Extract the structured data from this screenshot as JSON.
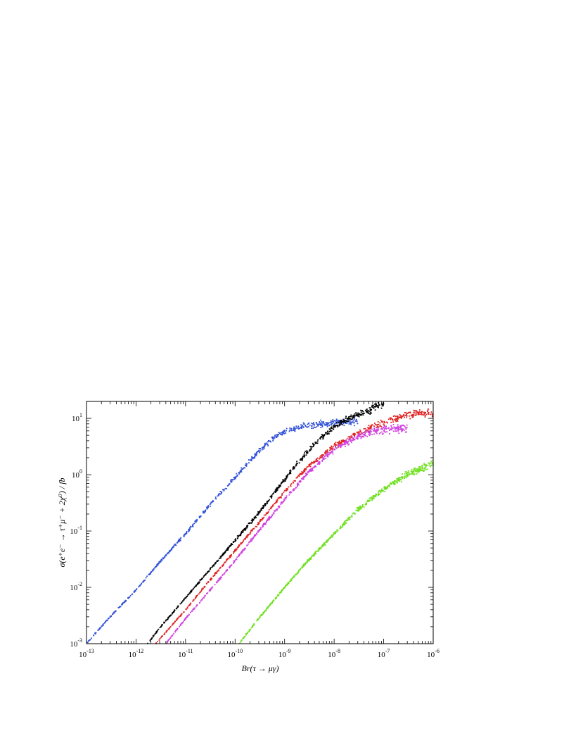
{
  "chart_data": {
    "type": "scatter",
    "xlabel": "Br(τ → μγ)",
    "ylabel": "σ(e⁺e⁻ → τ⁺μ⁻ + 2χ⁰) / fb",
    "x_scale": "log",
    "y_scale": "log",
    "xlim": [
      1e-13,
      1e-06
    ],
    "ylim": [
      0.001,
      20
    ],
    "grid": false,
    "legend": "none",
    "x_ticks": [
      {
        "value": 1e-13,
        "base": "10",
        "exp": "-13"
      },
      {
        "value": 1e-12,
        "base": "10",
        "exp": "-12"
      },
      {
        "value": 1e-11,
        "base": "10",
        "exp": "-11"
      },
      {
        "value": 1e-10,
        "base": "10",
        "exp": "-10"
      },
      {
        "value": 1e-09,
        "base": "10",
        "exp": "-9"
      },
      {
        "value": 1e-08,
        "base": "10",
        "exp": "-8"
      },
      {
        "value": 1e-07,
        "base": "10",
        "exp": "-7"
      },
      {
        "value": 1e-06,
        "base": "10",
        "exp": "-6"
      }
    ],
    "y_ticks": [
      {
        "value": 0.001,
        "base": "10",
        "exp": "-3"
      },
      {
        "value": 0.01,
        "base": "10",
        "exp": "-2"
      },
      {
        "value": 0.1,
        "base": "10",
        "exp": "-1"
      },
      {
        "value": 1,
        "base": "10",
        "exp": "0"
      },
      {
        "value": 10,
        "base": "10",
        "exp": "1"
      }
    ],
    "series": [
      {
        "color": "#3050d8",
        "x": [
          1e-13,
          3e-13,
          1e-12,
          3e-12,
          1e-11,
          3e-11,
          1e-10,
          2e-10,
          4e-10,
          7e-10,
          1.5e-09,
          3e-09,
          6e-09,
          1e-08,
          2e-08,
          3e-08
        ],
        "y": [
          0.001,
          0.003,
          0.009,
          0.028,
          0.09,
          0.28,
          0.9,
          1.8,
          3.3,
          5.0,
          6.5,
          7.5,
          8.0,
          8.5,
          8.5,
          8.8
        ]
      },
      {
        "color": "#000000",
        "x": [
          1.7e-12,
          3e-12,
          1e-11,
          3e-11,
          1e-10,
          3e-10,
          7e-10,
          1.5e-09,
          4e-09,
          1e-08,
          2e-08,
          4e-08,
          7e-08,
          1e-07
        ],
        "y": [
          0.001,
          0.0019,
          0.0065,
          0.02,
          0.068,
          0.21,
          0.55,
          1.3,
          3.5,
          7.0,
          10,
          13,
          16,
          17
        ]
      },
      {
        "color": "#e02020",
        "x": [
          2.5e-12,
          1e-11,
          3e-11,
          1e-10,
          3e-10,
          1e-09,
          3e-09,
          1e-08,
          3e-08,
          7e-08,
          1.5e-07,
          3e-07,
          5e-07,
          1e-06
        ],
        "y": [
          0.001,
          0.004,
          0.013,
          0.045,
          0.14,
          0.5,
          1.4,
          3.2,
          5.5,
          7.5,
          9.5,
          11.5,
          12.5,
          12
        ]
      },
      {
        "color": "#d040e0",
        "x": [
          4e-12,
          1e-11,
          3e-11,
          1e-10,
          3e-10,
          1e-09,
          3e-09,
          1e-08,
          3e-08,
          7e-08,
          1.5e-07,
          3e-07
        ],
        "y": [
          0.001,
          0.0028,
          0.0085,
          0.03,
          0.1,
          0.36,
          1.1,
          2.8,
          4.8,
          6.0,
          6.5,
          6.8
        ]
      },
      {
        "color": "#70e020",
        "x": [
          1.2e-10,
          3e-10,
          1e-09,
          3e-09,
          1e-08,
          3e-08,
          1e-07,
          3e-07,
          1e-06
        ],
        "y": [
          0.001,
          0.0028,
          0.01,
          0.03,
          0.09,
          0.24,
          0.55,
          1.0,
          1.6
        ]
      }
    ]
  }
}
